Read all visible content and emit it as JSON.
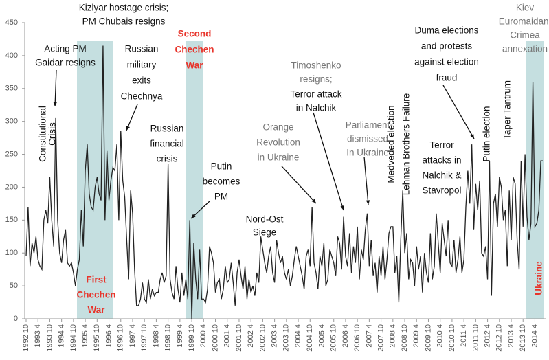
{
  "chart_data": {
    "type": "line",
    "color": "#222222",
    "ylim": [
      0,
      450
    ],
    "yticks": [
      0,
      50,
      100,
      150,
      200,
      250,
      300,
      350,
      400,
      450
    ],
    "categories": [
      "1992 10",
      null,
      null,
      null,
      null,
      null,
      "1993 4",
      null,
      null,
      null,
      null,
      null,
      "1993 10",
      null,
      null,
      null,
      null,
      null,
      "1994 4",
      null,
      null,
      null,
      null,
      null,
      "1994 10",
      null,
      null,
      null,
      null,
      null,
      "1995 4",
      null,
      null,
      null,
      null,
      null,
      "1995 10",
      null,
      null,
      null,
      null,
      null,
      "1996 4",
      null,
      null,
      null,
      null,
      null,
      "1996 10",
      null,
      null,
      null,
      null,
      null,
      "1997 4",
      null,
      null,
      null,
      null,
      null,
      "1997 10",
      null,
      null,
      null,
      null,
      null,
      "1998 4",
      null,
      null,
      null,
      null,
      null,
      "1998 10",
      null,
      null,
      null,
      null,
      null,
      "1999 4",
      null,
      null,
      null,
      null,
      null,
      "1999 10",
      null,
      null,
      null,
      null,
      null,
      "2000 4",
      null,
      null,
      null,
      null,
      null,
      "2000 10",
      null,
      null,
      null,
      null,
      null,
      "2001 4",
      null,
      null,
      null,
      null,
      null,
      "2001 10",
      null,
      null,
      null,
      null,
      null,
      "2002 4",
      null,
      null,
      null,
      null,
      null,
      "2002 10",
      null,
      null,
      null,
      null,
      null,
      "2003 4",
      null,
      null,
      null,
      null,
      null,
      "2003 10",
      null,
      null,
      null,
      null,
      null,
      "2004 4",
      null,
      null,
      null,
      null,
      null,
      "2004 10",
      null,
      null,
      null,
      null,
      null,
      "2005 4",
      null,
      null,
      null,
      null,
      null,
      "2005 10",
      null,
      null,
      null,
      null,
      null,
      "2006 4",
      null,
      null,
      null,
      null,
      null,
      "2006 10",
      null,
      null,
      null,
      null,
      null,
      "2007 4",
      null,
      null,
      null,
      null,
      null,
      "2007 10",
      null,
      null,
      null,
      null,
      null,
      "2008 4",
      null,
      null,
      null,
      null,
      null,
      "2008 10",
      null,
      null,
      null,
      null,
      null,
      "2009 4",
      null,
      null,
      null,
      null,
      null,
      "2009 10",
      null,
      null,
      null,
      null,
      null,
      "2010 4",
      null,
      null,
      null,
      null,
      null,
      "2010 10",
      null,
      null,
      null,
      null,
      null,
      "2011 4",
      null,
      null,
      null,
      null,
      null,
      "2011 10",
      null,
      null,
      null,
      null,
      null,
      "2012 4",
      null,
      null,
      null,
      null,
      null,
      "2012 10",
      null,
      null,
      null,
      null,
      null,
      "2013 4",
      null,
      null,
      null,
      null,
      null,
      "2013 10",
      null,
      null,
      null,
      null,
      null,
      "2014 4",
      null,
      null,
      null,
      null
    ],
    "values": [
      95,
      170,
      80,
      115,
      100,
      125,
      90,
      80,
      75,
      150,
      165,
      145,
      215,
      150,
      110,
      305,
      150,
      100,
      85,
      120,
      135,
      85,
      80,
      85,
      70,
      50,
      75,
      90,
      165,
      110,
      225,
      265,
      190,
      170,
      165,
      200,
      215,
      190,
      180,
      415,
      150,
      255,
      180,
      210,
      230,
      225,
      265,
      150,
      285,
      210,
      185,
      120,
      60,
      195,
      160,
      75,
      20,
      20,
      30,
      55,
      30,
      25,
      60,
      30,
      45,
      35,
      40,
      40,
      60,
      70,
      55,
      65,
      235,
      60,
      40,
      30,
      80,
      45,
      25,
      70,
      35,
      60,
      30,
      150,
      0,
      115,
      60,
      30,
      105,
      30,
      30,
      25,
      45,
      110,
      100,
      85,
      40,
      55,
      60,
      30,
      45,
      80,
      55,
      60,
      85,
      55,
      20,
      70,
      90,
      65,
      45,
      80,
      30,
      60,
      40,
      50,
      35,
      70,
      55,
      125,
      105,
      85,
      70,
      95,
      110,
      70,
      55,
      120,
      100,
      85,
      95,
      70,
      60,
      75,
      50,
      65,
      90,
      110,
      95,
      80,
      65,
      45,
      95,
      105,
      80,
      170,
      85,
      70,
      45,
      95,
      80,
      115,
      50,
      60,
      105,
      95,
      85,
      65,
      125,
      115,
      75,
      155,
      95,
      80,
      130,
      70,
      110,
      85,
      140,
      60,
      105,
      90,
      135,
      160,
      80,
      120,
      65,
      85,
      40,
      95,
      65,
      110,
      60,
      90,
      130,
      140,
      140,
      70,
      95,
      25,
      120,
      195,
      100,
      130,
      60,
      90,
      85,
      50,
      110,
      75,
      95,
      40,
      100,
      70,
      55,
      130,
      60,
      80,
      160,
      115,
      70,
      145,
      120,
      95,
      150,
      85,
      80,
      120,
      70,
      90,
      125,
      70,
      90,
      170,
      225,
      175,
      265,
      135,
      205,
      165,
      210,
      100,
      95,
      110,
      60,
      240,
      35,
      175,
      190,
      140,
      215,
      200,
      150,
      165,
      80,
      195,
      120,
      215,
      205,
      120,
      75,
      240,
      140,
      250,
      155,
      120,
      145,
      360,
      140,
      145,
      165,
      240,
      240
    ],
    "annotations": [
      {
        "lines": [
          "Constitutional",
          "Crisis"
        ]
      },
      {
        "lines": [
          "Acting PM",
          "Gaidar resigns"
        ]
      },
      {
        "lines": [
          "Kizlyar hostage crisis;",
          "PM Chubais resigns"
        ]
      },
      {
        "lines": [
          "Russian",
          "military",
          "exits",
          "Chechnya"
        ]
      },
      {
        "lines": [
          "Second",
          "Chechen",
          "War"
        ],
        "color": "#e8342b"
      },
      {
        "lines": [
          "First",
          "Chechen",
          "War"
        ],
        "color": "#e8342b"
      },
      {
        "lines": [
          "Russian",
          "financial",
          "crisis"
        ]
      },
      {
        "lines": [
          "Putin",
          "becomes",
          "PM"
        ]
      },
      {
        "lines": [
          "Nord-Ost",
          "Siege"
        ]
      },
      {
        "lines": [
          "Orange",
          "Revolution",
          "in Ukraine"
        ],
        "color": "#777777"
      },
      {
        "lines": [
          "Timoshenko",
          "resigns;"
        ],
        "color": "#777777"
      },
      {
        "lines": [
          "Terror attack",
          "in Nalchik"
        ]
      },
      {
        "lines": [
          "Parliament",
          "dismissed",
          "In Ukraine"
        ],
        "color": "#777777"
      },
      {
        "lines": [
          "Medveded election"
        ]
      },
      {
        "lines": [
          "Lehman Brothers Failure"
        ]
      },
      {
        "lines": [
          "Terror",
          "attacks in",
          "Nalchik &",
          "Stavropol"
        ]
      },
      {
        "lines": [
          "Duma elections",
          "and protests",
          "against election",
          "fraud"
        ]
      },
      {
        "lines": [
          "Putin election"
        ]
      },
      {
        "lines": [
          "Taper Tantrum"
        ]
      },
      {
        "lines": [
          "Kiev",
          "Euromaidan;",
          "Crimea",
          "annexation"
        ],
        "color": "#777777"
      },
      {
        "lines": [
          "Ukraine"
        ],
        "color": "#e8342b"
      }
    ]
  }
}
